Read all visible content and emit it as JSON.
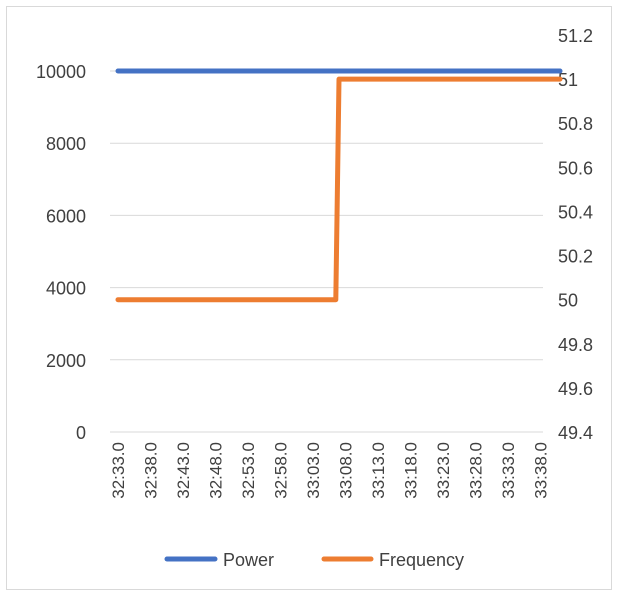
{
  "chart_data": {
    "type": "line",
    "x": [
      "32:33.0",
      "32:38.0",
      "32:43.0",
      "32:48.0",
      "32:53.0",
      "32:58.0",
      "33:03.0",
      "33:08.0",
      "33:13.0",
      "33:18.0",
      "33:23.0",
      "33:28.0",
      "33:33.0",
      "33:38.0"
    ],
    "y_left": {
      "ylim": [
        0,
        10000
      ],
      "ticks": [
        "0",
        "2000",
        "4000",
        "6000",
        "8000",
        "10000"
      ]
    },
    "y_right": {
      "ylim": [
        49.4,
        51.2
      ],
      "ticks": [
        "49.4",
        "49.6",
        "49.8",
        "50",
        "50.2",
        "50.4",
        "50.6",
        "50.8",
        "51",
        "51.2"
      ]
    },
    "grid": true,
    "legend_position": "bottom",
    "series": [
      {
        "name": "Power",
        "axis": "left",
        "color": "#4472C4",
        "points": [
          [
            "32:33.0",
            10000
          ],
          [
            "33:41.0",
            10000
          ]
        ]
      },
      {
        "name": "Frequency",
        "axis": "right",
        "color": "#ED7D31",
        "points": [
          [
            "32:33.0",
            50
          ],
          [
            "33:06.5",
            50
          ],
          [
            "33:07.0",
            51
          ],
          [
            "33:41.0",
            51
          ]
        ]
      }
    ],
    "legend": [
      "Power",
      "Frequency"
    ]
  }
}
